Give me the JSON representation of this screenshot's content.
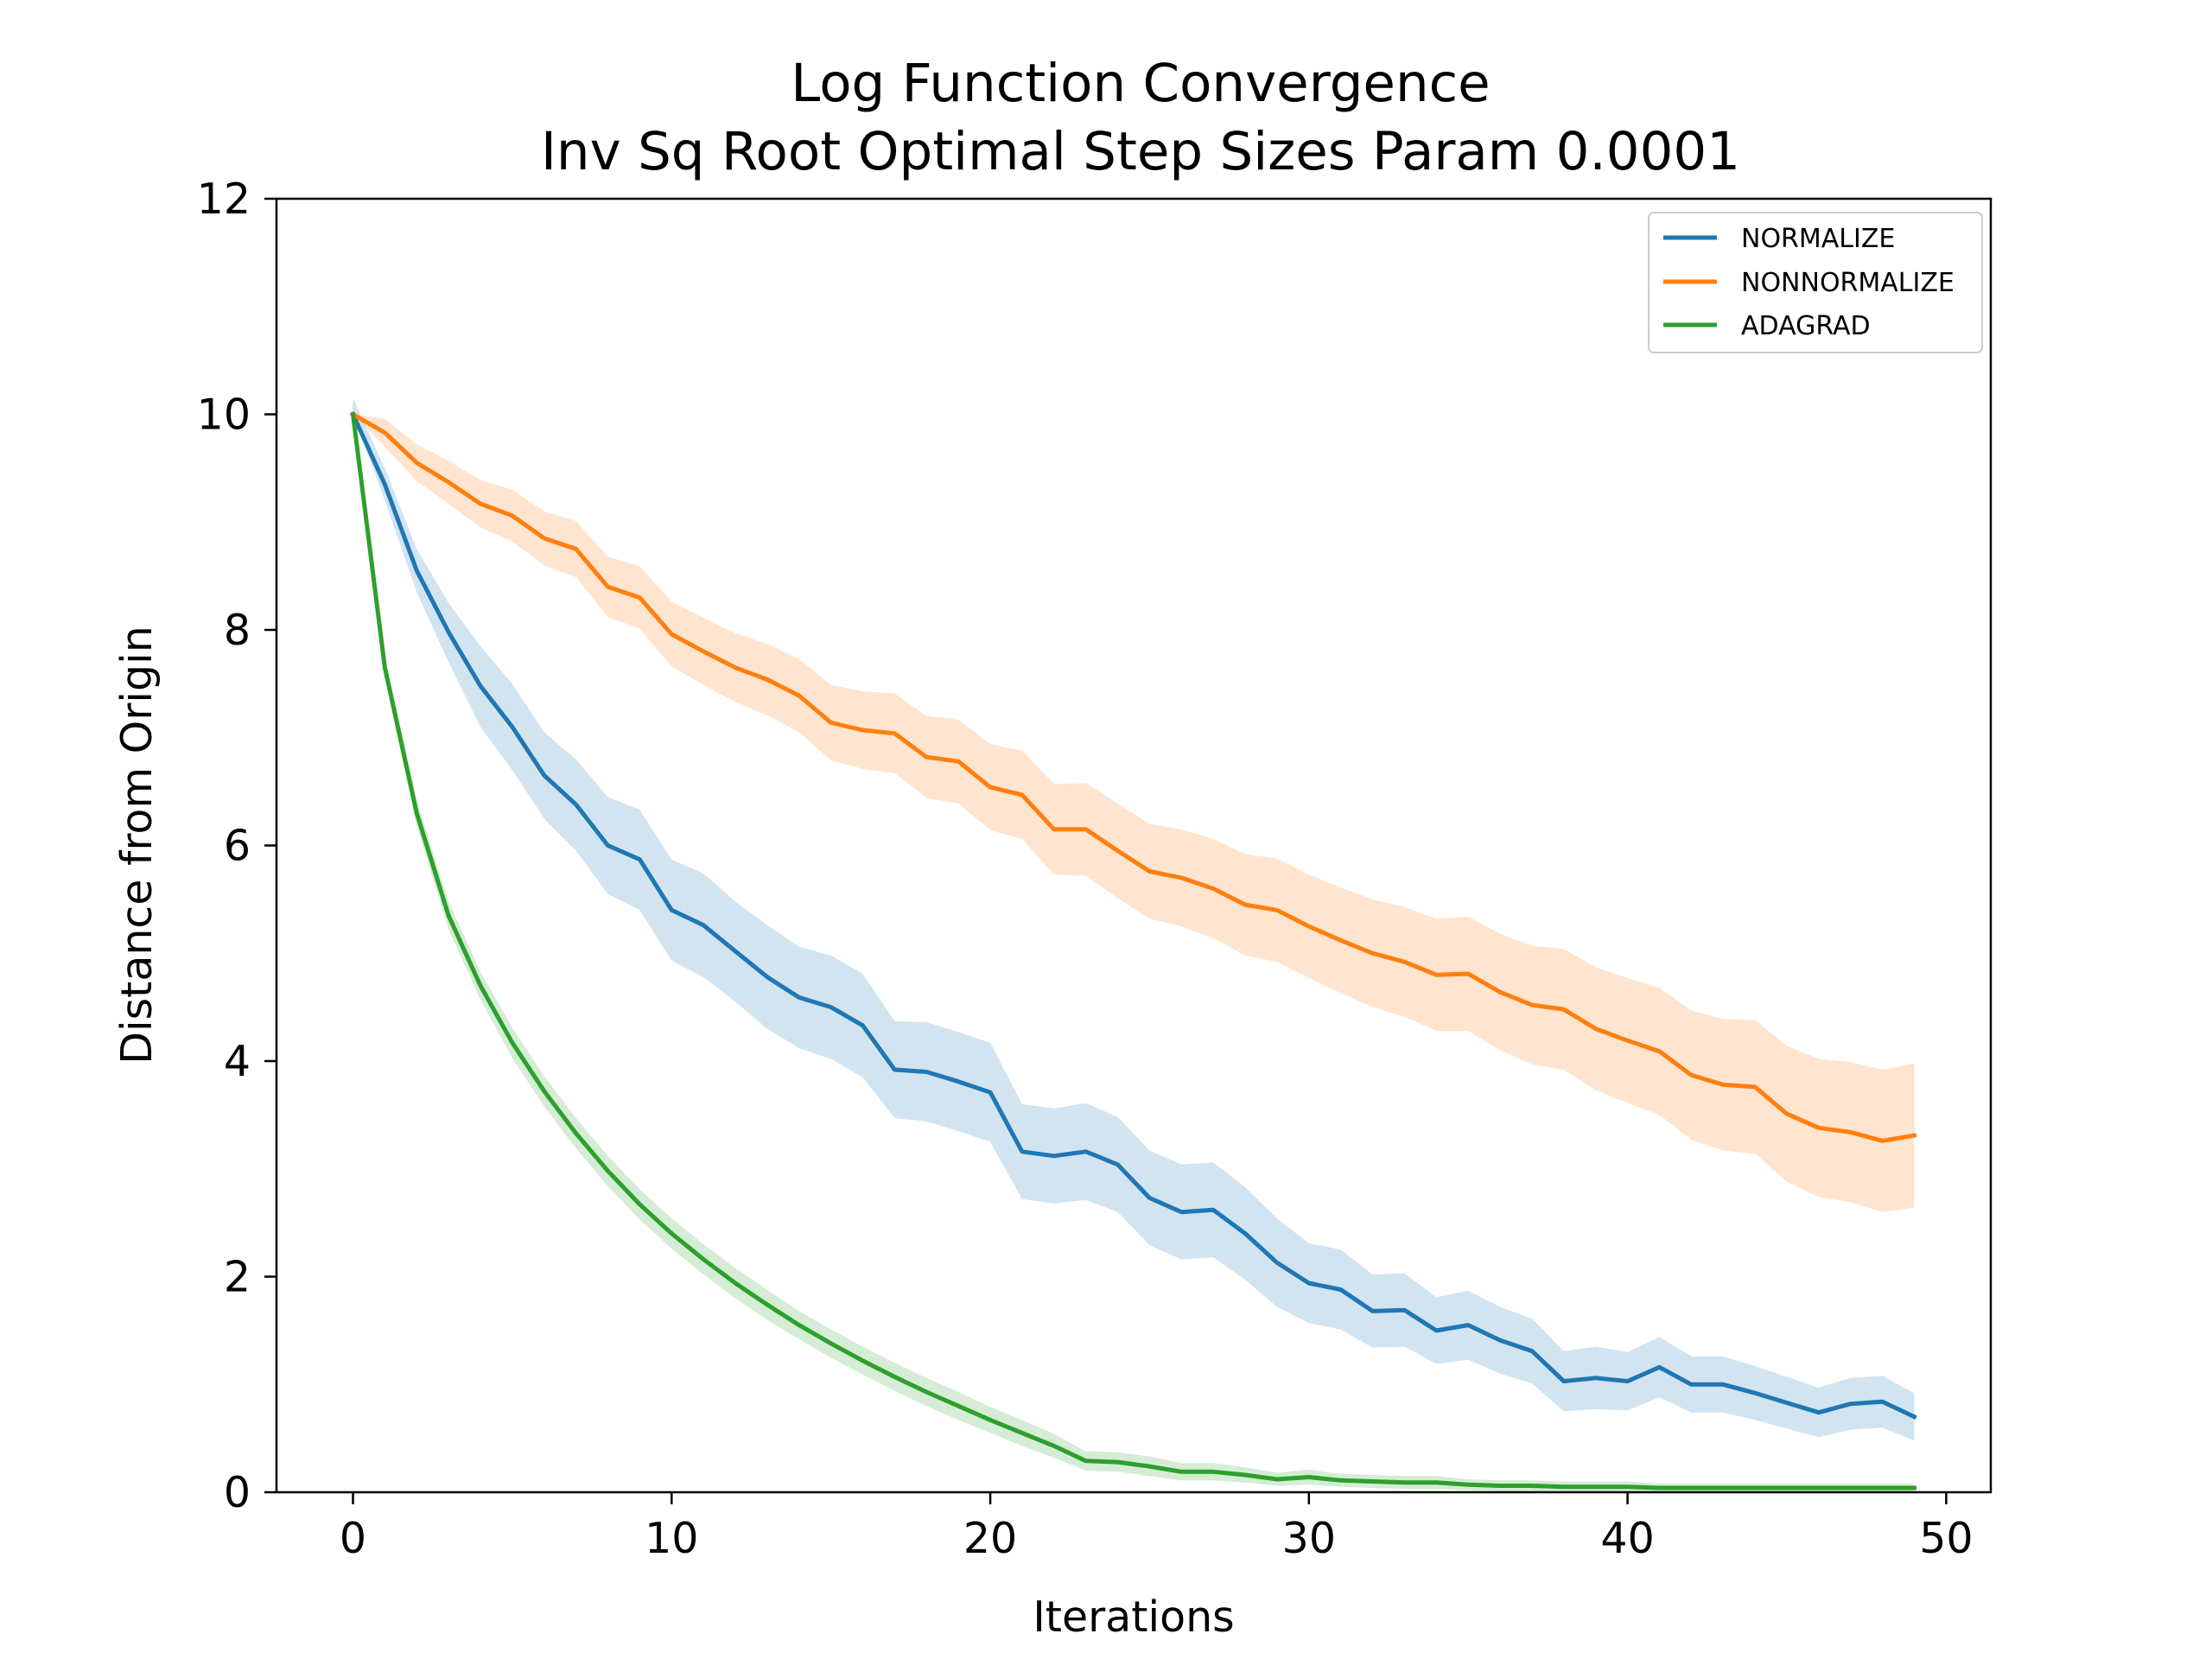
{
  "chart_data": {
    "type": "line",
    "title": "Log Function Convergence",
    "subtitle": "Inv Sq Root Optimal Step Sizes Param 0.0001",
    "xlabel": "Iterations",
    "ylabel": "Distance from Origin",
    "xlim": [
      -2.4,
      51.4
    ],
    "ylim": [
      0,
      12
    ],
    "xticks": [
      0,
      10,
      20,
      30,
      40,
      50
    ],
    "yticks": [
      0,
      2,
      4,
      6,
      8,
      10,
      12
    ],
    "grid": false,
    "legend_position": "top-right",
    "series": [
      {
        "name": "NORMALIZE",
        "color": "#1f77b4",
        "band_color": "#1f77b4",
        "x": [
          0,
          1,
          2,
          3,
          4,
          5,
          6,
          7,
          8,
          9,
          10,
          11,
          12,
          13,
          14,
          15,
          16,
          17,
          18,
          19,
          20,
          21,
          22,
          23,
          24,
          25,
          26,
          27,
          28,
          29,
          30,
          31,
          32,
          33,
          34,
          35,
          36,
          37,
          38,
          39,
          40,
          41,
          42,
          43,
          44,
          45,
          46,
          47,
          48,
          49
        ],
        "values": [
          10.0,
          9.35,
          8.55,
          7.98,
          7.48,
          7.1,
          6.65,
          6.38,
          6.0,
          5.87,
          5.4,
          5.26,
          5.02,
          4.78,
          4.59,
          4.5,
          4.33,
          3.92,
          3.9,
          3.81,
          3.71,
          3.16,
          3.12,
          3.16,
          3.04,
          2.73,
          2.6,
          2.62,
          2.4,
          2.13,
          1.94,
          1.88,
          1.68,
          1.69,
          1.5,
          1.55,
          1.41,
          1.31,
          1.03,
          1.06,
          1.03,
          1.16,
          1.0,
          1.0,
          0.92,
          0.83,
          0.74,
          0.82,
          0.84,
          0.7
        ],
        "lower": [
          10.0,
          9.2,
          8.35,
          7.7,
          7.1,
          6.7,
          6.25,
          5.95,
          5.55,
          5.4,
          4.93,
          4.78,
          4.55,
          4.3,
          4.12,
          4.02,
          3.85,
          3.47,
          3.44,
          3.35,
          3.25,
          2.72,
          2.68,
          2.71,
          2.6,
          2.29,
          2.16,
          2.18,
          1.97,
          1.72,
          1.57,
          1.51,
          1.34,
          1.35,
          1.19,
          1.23,
          1.1,
          1.01,
          0.75,
          0.77,
          0.76,
          0.88,
          0.74,
          0.74,
          0.67,
          0.59,
          0.51,
          0.58,
          0.6,
          0.48
        ],
        "upper": [
          10.15,
          9.5,
          8.75,
          8.25,
          7.85,
          7.5,
          7.05,
          6.8,
          6.45,
          6.33,
          5.87,
          5.74,
          5.48,
          5.26,
          5.06,
          4.98,
          4.81,
          4.37,
          4.36,
          4.27,
          4.17,
          3.6,
          3.56,
          3.61,
          3.48,
          3.17,
          3.04,
          3.06,
          2.83,
          2.54,
          2.31,
          2.25,
          2.02,
          2.03,
          1.81,
          1.87,
          1.72,
          1.61,
          1.31,
          1.35,
          1.3,
          1.44,
          1.26,
          1.26,
          1.17,
          1.07,
          0.97,
          1.06,
          1.08,
          0.92
        ]
      },
      {
        "name": "NONNORMALIZE",
        "color": "#ff7f0e",
        "band_color": "#ff7f0e",
        "x": [
          0,
          1,
          2,
          3,
          4,
          5,
          6,
          7,
          8,
          9,
          10,
          11,
          12,
          13,
          14,
          15,
          16,
          17,
          18,
          19,
          20,
          21,
          22,
          23,
          24,
          25,
          26,
          27,
          28,
          29,
          30,
          31,
          32,
          33,
          34,
          35,
          36,
          37,
          38,
          39,
          40,
          41,
          42,
          43,
          44,
          45,
          46,
          47,
          48,
          49
        ],
        "values": [
          10.0,
          9.83,
          9.55,
          9.37,
          9.17,
          9.06,
          8.85,
          8.75,
          8.4,
          8.3,
          7.96,
          7.8,
          7.65,
          7.54,
          7.39,
          7.14,
          7.07,
          7.04,
          6.82,
          6.78,
          6.54,
          6.47,
          6.15,
          6.15,
          5.95,
          5.76,
          5.7,
          5.6,
          5.45,
          5.4,
          5.25,
          5.12,
          5.0,
          4.92,
          4.8,
          4.81,
          4.64,
          4.52,
          4.48,
          4.3,
          4.19,
          4.09,
          3.87,
          3.78,
          3.76,
          3.51,
          3.38,
          3.34,
          3.26,
          3.31
        ],
        "lower": [
          10.0,
          9.7,
          9.38,
          9.17,
          8.95,
          8.82,
          8.6,
          8.49,
          8.12,
          8.01,
          7.66,
          7.49,
          7.33,
          7.21,
          7.05,
          6.79,
          6.71,
          6.67,
          6.44,
          6.39,
          6.14,
          6.06,
          5.73,
          5.72,
          5.51,
          5.32,
          5.25,
          5.14,
          4.98,
          4.92,
          4.77,
          4.63,
          4.5,
          4.41,
          4.28,
          4.28,
          4.1,
          3.97,
          3.92,
          3.73,
          3.61,
          3.5,
          3.27,
          3.17,
          3.14,
          2.88,
          2.74,
          2.69,
          2.6,
          2.64
        ],
        "upper": [
          10.0,
          9.96,
          9.72,
          9.57,
          9.39,
          9.3,
          9.1,
          9.01,
          8.68,
          8.59,
          8.26,
          8.11,
          7.97,
          7.87,
          7.73,
          7.49,
          7.43,
          7.41,
          7.2,
          7.17,
          6.94,
          6.88,
          6.57,
          6.58,
          6.39,
          6.2,
          6.15,
          6.06,
          5.92,
          5.88,
          5.73,
          5.61,
          5.5,
          5.43,
          5.32,
          5.34,
          5.18,
          5.07,
          5.04,
          4.87,
          4.77,
          4.68,
          4.47,
          4.39,
          4.38,
          4.14,
          4.02,
          3.99,
          3.92,
          3.98
        ]
      },
      {
        "name": "ADAGRAD",
        "color": "#2ca02c",
        "band_color": "#2ca02c",
        "x": [
          0,
          1,
          2,
          3,
          4,
          5,
          6,
          7,
          8,
          9,
          10,
          11,
          12,
          13,
          14,
          15,
          16,
          17,
          18,
          19,
          20,
          21,
          22,
          23,
          24,
          25,
          26,
          27,
          28,
          29,
          30,
          31,
          32,
          33,
          34,
          35,
          36,
          37,
          38,
          39,
          40,
          41,
          42,
          43,
          44,
          45,
          46,
          47,
          48,
          49
        ],
        "values": [
          10.0,
          7.65,
          6.3,
          5.35,
          4.7,
          4.17,
          3.72,
          3.33,
          2.98,
          2.67,
          2.4,
          2.16,
          1.94,
          1.74,
          1.55,
          1.38,
          1.22,
          1.07,
          0.93,
          0.8,
          0.67,
          0.55,
          0.43,
          0.29,
          0.28,
          0.24,
          0.19,
          0.19,
          0.16,
          0.12,
          0.14,
          0.11,
          0.1,
          0.09,
          0.09,
          0.07,
          0.06,
          0.06,
          0.05,
          0.05,
          0.05,
          0.04,
          0.04,
          0.04,
          0.04,
          0.04,
          0.04,
          0.04,
          0.04,
          0.04
        ],
        "lower": [
          10.0,
          7.55,
          6.18,
          5.22,
          4.57,
          4.03,
          3.58,
          3.19,
          2.84,
          2.53,
          2.26,
          2.02,
          1.8,
          1.6,
          1.42,
          1.25,
          1.09,
          0.94,
          0.8,
          0.67,
          0.55,
          0.43,
          0.32,
          0.2,
          0.19,
          0.15,
          0.11,
          0.11,
          0.09,
          0.06,
          0.07,
          0.05,
          0.04,
          0.03,
          0.03,
          0.02,
          0.01,
          0.01,
          0.0,
          0.0,
          0.0,
          0.0,
          0.0,
          0.0,
          0.0,
          0.0,
          0.0,
          0.0,
          0.0,
          0.0
        ],
        "upper": [
          10.1,
          7.75,
          6.42,
          5.48,
          4.83,
          4.31,
          3.86,
          3.47,
          3.12,
          2.81,
          2.54,
          2.3,
          2.08,
          1.88,
          1.68,
          1.51,
          1.35,
          1.2,
          1.06,
          0.93,
          0.79,
          0.67,
          0.54,
          0.38,
          0.37,
          0.33,
          0.27,
          0.27,
          0.23,
          0.18,
          0.21,
          0.17,
          0.16,
          0.15,
          0.15,
          0.12,
          0.11,
          0.11,
          0.1,
          0.1,
          0.1,
          0.08,
          0.08,
          0.08,
          0.08,
          0.08,
          0.08,
          0.08,
          0.08,
          0.08
        ]
      }
    ]
  }
}
